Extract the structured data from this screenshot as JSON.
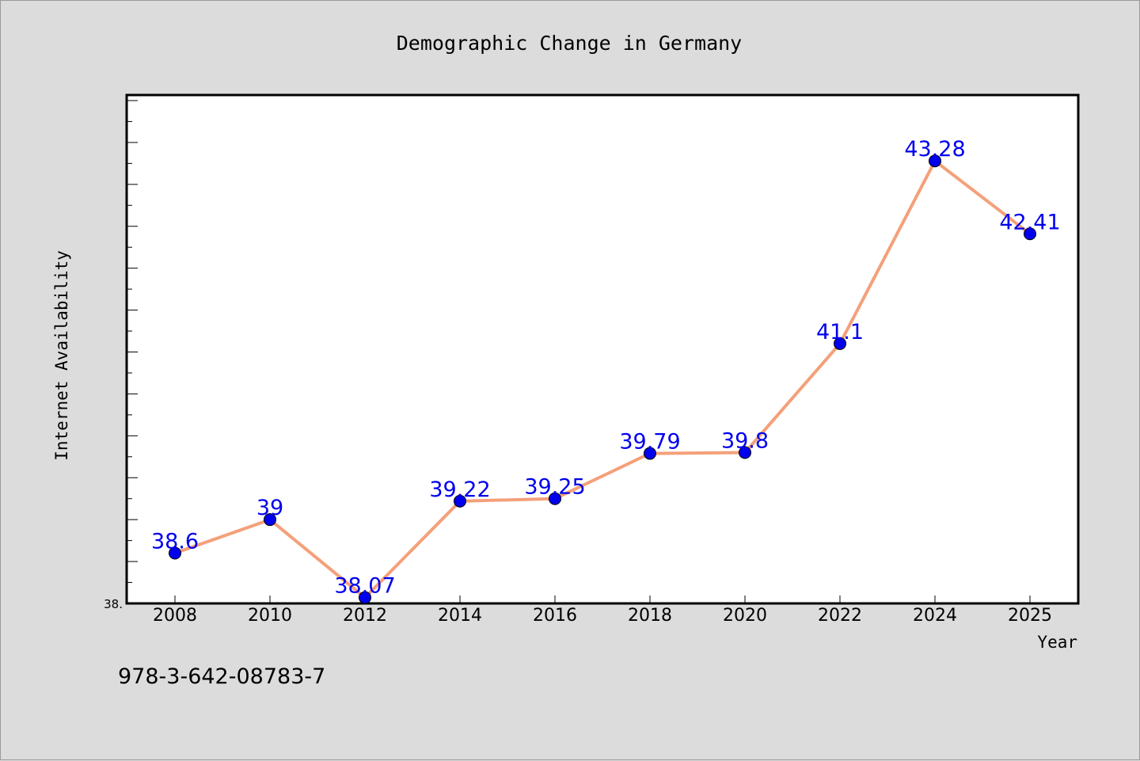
{
  "chart_data": {
    "type": "line",
    "title": "Demographic Change in Germany",
    "xlabel": "Year",
    "ylabel": "Internet Availability",
    "categories": [
      "2008",
      "2010",
      "2012",
      "2014",
      "2016",
      "2018",
      "2020",
      "2022",
      "2024",
      "2025"
    ],
    "series": [
      {
        "values": [
          38.6,
          39,
          38.07,
          39.22,
          39.25,
          39.79,
          39.8,
          41.1,
          43.28,
          42.41
        ],
        "labels": [
          "38.6",
          "39",
          "38.07",
          "39.22",
          "39.25",
          "39.79",
          "39.8",
          "41.1",
          "43.28",
          "42.41"
        ],
        "line_color": "#f4a07a",
        "marker_color": "#0000ee",
        "label_color": "#0000ee"
      }
    ],
    "ylim": [
      38.0,
      44.0
    ],
    "y_tick_label": "38.",
    "grid": false,
    "legend": "none"
  },
  "footer": {
    "code": "978-3-642-08783-7"
  },
  "colors": {
    "background": "#dcdcdc",
    "plot_area": "#ffffff",
    "axis": "#000000"
  }
}
